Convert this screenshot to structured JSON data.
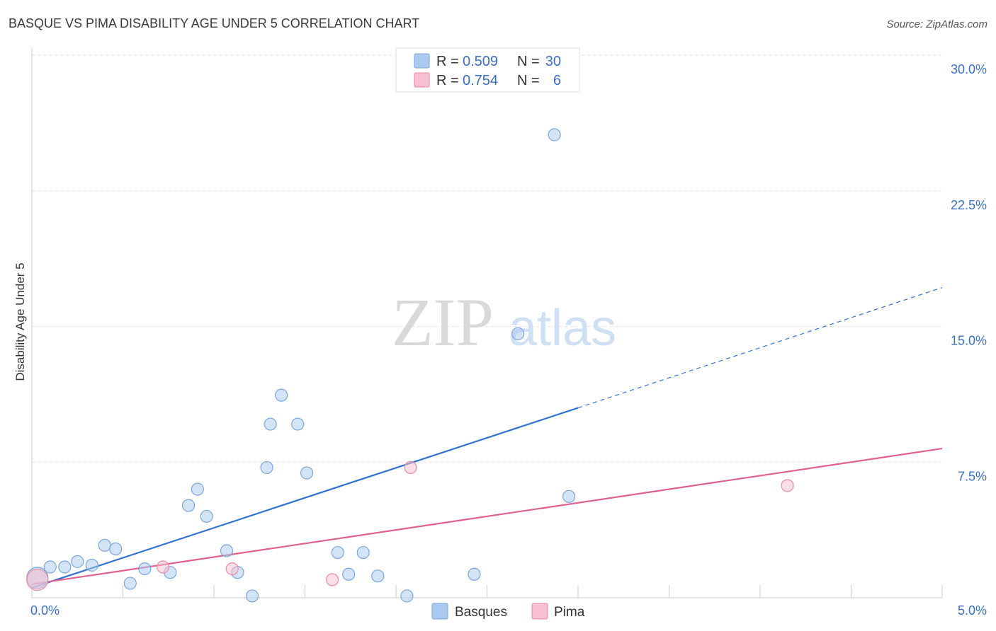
{
  "chart_data": {
    "type": "scatter",
    "title": "BASQUE VS PIMA DISABILITY AGE UNDER 5 CORRELATION CHART",
    "source": "Source: ZipAtlas.com",
    "ylabel": "Disability Age Under 5",
    "xlim": [
      0,
      5
    ],
    "ylim": [
      0,
      30
    ],
    "x_ticks": [
      {
        "value": 0,
        "label": "0.0%"
      },
      {
        "value": 5,
        "label": "5.0%"
      }
    ],
    "y_ticks": [
      {
        "value": 30,
        "label": "30.0%"
      },
      {
        "value": 22.5,
        "label": "22.5%"
      },
      {
        "value": 15,
        "label": "15.0%"
      },
      {
        "value": 7.5,
        "label": "7.5%"
      }
    ],
    "watermark": {
      "zip": "ZIP",
      "atlas": "atlas"
    },
    "legend": [
      {
        "name": "Basques",
        "r_label": "R = ",
        "r_value": "0.509",
        "n_label": "N = ",
        "n_value": "30",
        "color": "#a9c9f0",
        "stroke": "#7aa6dc"
      },
      {
        "name": "Pima",
        "r_label": "R = ",
        "r_value": "0.754",
        "n_label": "N = ",
        "n_value": "6",
        "color": "#f7bfd0",
        "stroke": "#e98aa8"
      }
    ],
    "series": [
      {
        "name": "Basques",
        "color": "#a9c9f0",
        "stroke": "#7aa6dc",
        "line_color": "#2f72cf",
        "trend": {
          "x0": 0,
          "y0": 0.55,
          "x1": 3.0,
          "y1": 10.5,
          "dash_to": 5.0,
          "dash_y": 17.15
        },
        "points": [
          {
            "x": 0.03,
            "y": 1.1,
            "large": true
          },
          {
            "x": 0.1,
            "y": 1.7
          },
          {
            "x": 0.18,
            "y": 1.7
          },
          {
            "x": 0.25,
            "y": 2.0
          },
          {
            "x": 0.33,
            "y": 1.8
          },
          {
            "x": 0.4,
            "y": 2.9
          },
          {
            "x": 0.46,
            "y": 2.7
          },
          {
            "x": 0.54,
            "y": 0.8
          },
          {
            "x": 0.62,
            "y": 1.6
          },
          {
            "x": 0.76,
            "y": 1.4
          },
          {
            "x": 0.86,
            "y": 5.1
          },
          {
            "x": 0.91,
            "y": 6.0
          },
          {
            "x": 0.96,
            "y": 4.5
          },
          {
            "x": 1.07,
            "y": 2.6
          },
          {
            "x": 1.13,
            "y": 1.4
          },
          {
            "x": 1.21,
            "y": 0.1
          },
          {
            "x": 1.29,
            "y": 7.2
          },
          {
            "x": 1.31,
            "y": 9.6
          },
          {
            "x": 1.37,
            "y": 11.2
          },
          {
            "x": 1.46,
            "y": 9.6
          },
          {
            "x": 1.51,
            "y": 6.9
          },
          {
            "x": 1.68,
            "y": 2.5
          },
          {
            "x": 1.74,
            "y": 1.3
          },
          {
            "x": 1.82,
            "y": 2.5
          },
          {
            "x": 1.9,
            "y": 1.2
          },
          {
            "x": 2.06,
            "y": 0.1
          },
          {
            "x": 2.43,
            "y": 1.3
          },
          {
            "x": 2.67,
            "y": 14.6
          },
          {
            "x": 2.87,
            "y": 25.6
          },
          {
            "x": 2.95,
            "y": 5.6
          }
        ]
      },
      {
        "name": "Pima",
        "color": "#f7bfd0",
        "stroke": "#e98aa8",
        "line_color": "#e06090",
        "trend": {
          "x0": 0,
          "y0": 0.75,
          "x1": 5.0,
          "y1": 8.25
        },
        "points": [
          {
            "x": 0.03,
            "y": 1.0,
            "large": true
          },
          {
            "x": 0.72,
            "y": 1.7
          },
          {
            "x": 1.1,
            "y": 1.6
          },
          {
            "x": 1.65,
            "y": 1.0
          },
          {
            "x": 2.08,
            "y": 7.2
          },
          {
            "x": 4.15,
            "y": 6.2
          }
        ]
      }
    ]
  }
}
